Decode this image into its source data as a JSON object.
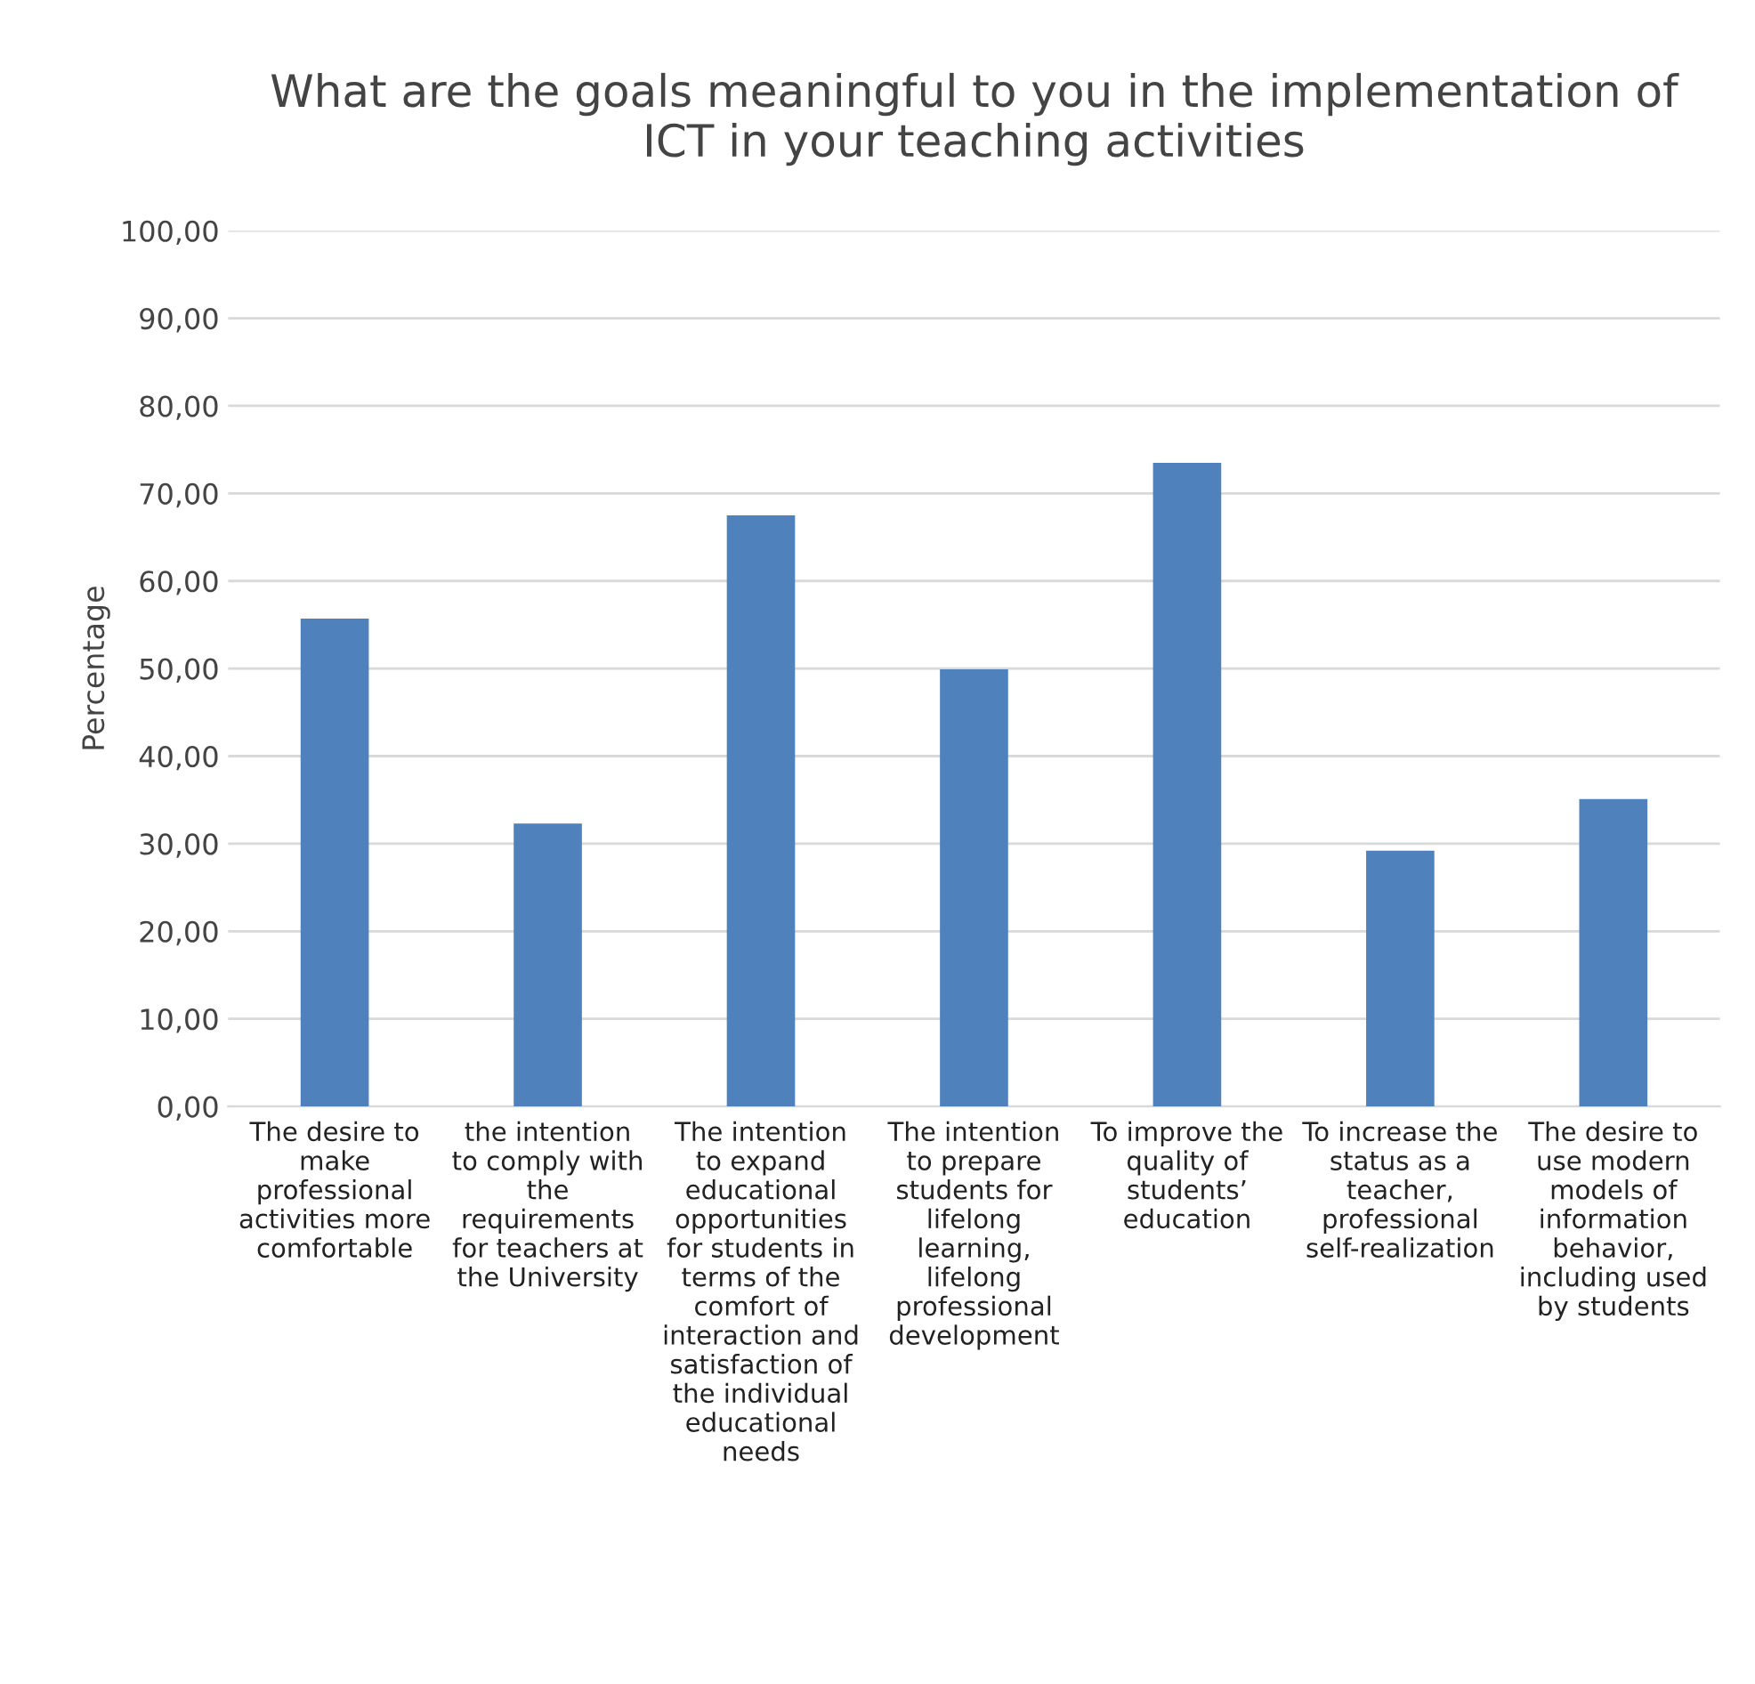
{
  "chart_data": {
    "type": "bar",
    "title": "What are the goals meaningful to you in the implementation of ICT in your teaching activities",
    "ylabel": "Percentage",
    "categories": [
      "The desire to make professional activities more comfortable",
      "the intention to comply with the requirements for teachers at the University",
      "The intention to expand educational opportunities for students in terms of the comfort of interaction and satisfaction of the individual educational needs",
      "The intention to prepare students for lifelong learning, lifelong professional development",
      "To improve the quality of students’ education",
      "To increase the status as a teacher, professional self-realization",
      "The desire to use modern models of information behavior, including used by students"
    ],
    "values": [
      55.7,
      32.3,
      67.5,
      49.9,
      73.5,
      29.2,
      35.1
    ],
    "color": "#4f81bd",
    "ylim": [
      0,
      100
    ],
    "yticks": [
      {
        "value": 0,
        "label": "0,00"
      },
      {
        "value": 10,
        "label": "10,00"
      },
      {
        "value": 20,
        "label": "20,00"
      },
      {
        "value": 30,
        "label": "30,00"
      },
      {
        "value": 40,
        "label": "40,00"
      },
      {
        "value": 50,
        "label": "50,00"
      },
      {
        "value": 60,
        "label": "60,00"
      },
      {
        "value": 70,
        "label": "70,00"
      },
      {
        "value": 80,
        "label": "80,00"
      },
      {
        "value": 90,
        "label": "90,00"
      },
      {
        "value": 100,
        "label": "100,00"
      }
    ],
    "grid": "y"
  }
}
